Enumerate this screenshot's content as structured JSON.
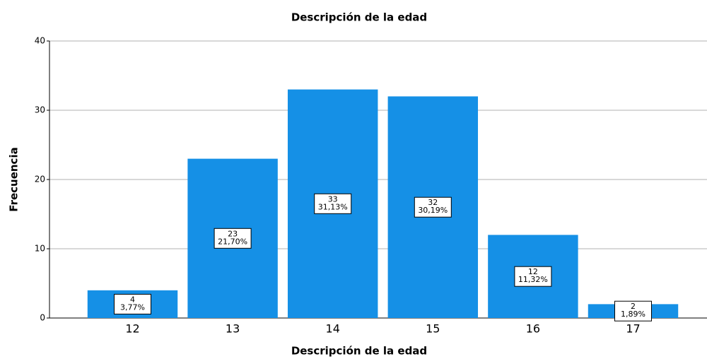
{
  "chart_data": {
    "type": "bar",
    "title": "Descripción de la edad",
    "x_label": "Descripción de la edad",
    "y_label": "Frecuencia",
    "categories": [
      "12",
      "13",
      "14",
      "15",
      "16",
      "17"
    ],
    "values": [
      4,
      23,
      33,
      32,
      12,
      2
    ],
    "percentages": [
      3.77,
      21.7,
      31.13,
      30.19,
      11.32,
      1.89
    ],
    "percentage_labels": [
      "3,77%",
      "21,70%",
      "31,13%",
      "30,19%",
      "11,32%",
      "1,89%"
    ],
    "color": "#1590e6",
    "ylim": [
      0,
      40
    ],
    "yticks": [
      0,
      10,
      20,
      30,
      40
    ],
    "grid": true
  }
}
